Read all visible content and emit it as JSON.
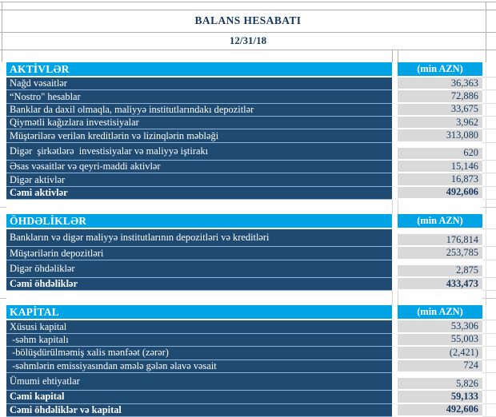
{
  "header": {
    "title": "BALANS HESABATI",
    "date": "12/31/18"
  },
  "colors": {
    "accent_cyan": "#00a3e4",
    "row_navy": "#1f4b73",
    "value_cell_bg": "#d9d9d9",
    "value_text_navy": "#17375e",
    "row_separator_blue": "#8fb3d9"
  },
  "sections": [
    {
      "name": "AKTİVLƏR",
      "unit_label": "(min AZN)",
      "rows": [
        {
          "label": "Nağd vəsaitlər",
          "value": "36,363"
        },
        {
          "label": "“Nostro\" hesablar",
          "value": "72,886"
        },
        {
          "label": "Banklar da daxil olmaqla, maliyyə institutlarındakı depozitlər",
          "value": "33,675"
        },
        {
          "label": "Qiymətli kağızlara investisiyalar",
          "value": "3,962"
        },
        {
          "label": "Müştərilərə verilən kreditlərin və lizinqlərin məbləği",
          "value": "313,080"
        },
        {
          "label": "Digər  şirkətlərə  investisiyalar və maliyyə iştirakı",
          "value": "620",
          "tall": true
        },
        {
          "label": "Əsas vəsaitlər və qeyri-maddi aktivlər",
          "value": "15,146"
        },
        {
          "label": "Digər aktivlər",
          "value": "16,873"
        },
        {
          "label": "Cəmi aktivlər",
          "value": "492,606",
          "bold": true
        }
      ]
    },
    {
      "name": "ÖHDƏLİKLƏR",
      "unit_label": "(min AZN)",
      "rows": [
        {
          "label": "Bankların və digər maliyyə institutlarının depozitləri və kreditləri",
          "value": "176,814",
          "tall": true
        },
        {
          "label": "Müştərilərin depozitləri",
          "value": "253,785"
        },
        {
          "label": "Digər öhdəliklər",
          "value": "2,875",
          "tall": true
        },
        {
          "label": "Cəmi öhdəliklər",
          "value": "433,473",
          "bold": true
        }
      ]
    },
    {
      "name": "KAPİTAL",
      "unit_label": "(min AZN)",
      "rows": [
        {
          "label": "Xüsusi kapital",
          "value": "53,306"
        },
        {
          "label": " -səhm kapitalı",
          "value": "55,003"
        },
        {
          "label": " -bölüşdürülməmiş xalis mənfəət (zərər)",
          "value": "(2,421)"
        },
        {
          "label": " -səhmlərin emissiyasından əmələ gələn əlavə vəsait",
          "value": "724"
        },
        {
          "label": "Ümumi ehtiyatlar",
          "value": "5,826",
          "tall": true
        },
        {
          "label": "Cəmi kapital",
          "value": "59,133",
          "bold": true
        },
        {
          "label": "Cəmi öhdəliklər və kapital",
          "value": "492,606",
          "bold": true
        }
      ]
    }
  ]
}
